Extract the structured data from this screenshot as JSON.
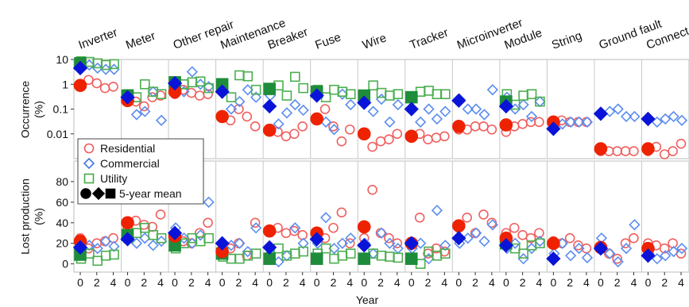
{
  "chart_data": {
    "type": "scatter",
    "panels": [
      {
        "id": "occurrence",
        "ylabel": "Occurrence\n(%)",
        "yscale": "log",
        "ylim": [
          0.001,
          10
        ],
        "ticks": [
          "10",
          "1",
          "0.1",
          "0.01"
        ],
        "tick_values": [
          10,
          1,
          0.1,
          0.01
        ]
      },
      {
        "id": "lost_production",
        "ylabel": "Lost production\n(%)",
        "yscale": "linear",
        "ylim": [
          -8,
          100
        ],
        "ticks": [
          "80",
          "60",
          "40",
          "20",
          "0"
        ],
        "tick_values": [
          80,
          60,
          40,
          20,
          0
        ]
      }
    ],
    "xlabel": "Year",
    "x_ticks": [
      "0",
      "2",
      "4"
    ],
    "categories": [
      "Inverter",
      "Meter",
      "Other repair",
      "Maintenance",
      "Breaker",
      "Fuse",
      "Wire",
      "Tracker",
      "Microinverter",
      "Module",
      "String",
      "Ground fault",
      "Connector"
    ],
    "legend": {
      "placement": "left, lower part of occurrence panel",
      "entries": [
        {
          "label": "Residential",
          "marker": "circle",
          "color": "#f05a5a"
        },
        {
          "label": "Commercial",
          "marker": "diamond",
          "color": "#4477dd"
        },
        {
          "label": "Utility",
          "marker": "square",
          "color": "#44aa44"
        },
        {
          "label": "5-year mean",
          "markers": [
            "circle",
            "diamond",
            "square"
          ],
          "color": "#000000",
          "filled": true
        }
      ]
    },
    "series_colors": {
      "residential": {
        "open": "#f06060",
        "mean": "#ee2200"
      },
      "commercial": {
        "open": "#5b8def",
        "mean": "#0a14d8"
      },
      "utility": {
        "open": "#4caf50",
        "mean": "#1e8c3a"
      }
    },
    "occurrence": [
      {
        "category": "Inverter",
        "residential": [
          1.0,
          1.5,
          1.1,
          0.7,
          0.8
        ],
        "residential_mean": 0.9,
        "commercial": [
          8,
          6,
          4.5,
          4,
          4
        ],
        "commercial_mean": 4.5,
        "utility": [
          8.5,
          8,
          7,
          6,
          6.5
        ],
        "utility_mean": 7
      },
      {
        "category": "Meter",
        "residential": [
          0.25,
          0.2,
          0.13,
          0.3,
          0.35
        ],
        "residential_mean": 0.22,
        "commercial": [
          0.35,
          0.06,
          0.08,
          0.5,
          0.035
        ],
        "commercial_mean": 0.3,
        "utility": [
          0.4,
          0.3,
          1.0,
          0.5,
          0.4
        ],
        "utility_mean": 0.35
      },
      {
        "category": "Other repair",
        "residential": [
          0.4,
          0.6,
          0.45,
          0.35,
          0.4
        ],
        "residential_mean": 0.5,
        "commercial": [
          1.2,
          0.5,
          3.2,
          1.0,
          0.8
        ],
        "commercial_mean": 1.1,
        "utility": [
          1.3,
          1.0,
          1.2,
          1.3,
          0.7
        ],
        "utility_mean": 1.2
      },
      {
        "category": "Maintenance",
        "residential": [
          0.045,
          0.035,
          0.1,
          0.05,
          0.02
        ],
        "residential_mean": 0.05,
        "commercial": [
          0.7,
          0.1,
          0.2,
          0.6,
          0.3
        ],
        "commercial_mean": 0.5,
        "utility": [
          1.0,
          0.3,
          2.3,
          2.1,
          0.6
        ],
        "utility_mean": 1.0
      },
      {
        "category": "Breaker",
        "residential": [
          0.015,
          0.012,
          0.008,
          0.01,
          0.02
        ],
        "residential_mean": 0.014,
        "commercial": [
          0.35,
          0.025,
          0.07,
          0.15,
          0.09
        ],
        "commercial_mean": 0.13,
        "utility": [
          0.7,
          0.9,
          0.35,
          2.0,
          0.7
        ],
        "utility_mean": 0.65
      },
      {
        "category": "Fuse",
        "residential": [
          0.04,
          0.1,
          0.02,
          0.005,
          0.015
        ],
        "residential_mean": 0.04,
        "commercial": [
          0.35,
          0.03,
          0.015,
          0.4,
          0.15
        ],
        "commercial_mean": 0.35,
        "utility": [
          0.6,
          0.3,
          0.6,
          0.5,
          0.4
        ],
        "utility_mean": 0.5
      },
      {
        "category": "Wire",
        "residential": [
          0.01,
          0.003,
          0.005,
          0.006,
          0.01
        ],
        "residential_mean": 0.01,
        "commercial": [
          0.25,
          0.08,
          0.25,
          0.03,
          0.15
        ],
        "commercial_mean": 0.18,
        "utility": [
          0.35,
          0.9,
          0.45,
          0.35,
          0.4
        ],
        "utility_mean": 0.35
      },
      {
        "category": "Tracker",
        "residential": [
          0.008,
          0.01,
          0.006,
          0.007,
          0.008
        ],
        "residential_mean": 0.008,
        "commercial": [
          0.25,
          0.03,
          0.1,
          0.04,
          0.08
        ],
        "commercial_mean": 0.1,
        "utility": [
          0.3,
          0.5,
          0.55,
          0.4,
          0.4
        ],
        "utility_mean": 0.3
      },
      {
        "category": "Microinverter",
        "residential": [
          0.015,
          0.015,
          0.02,
          0.02,
          0.015
        ],
        "residential_mean": 0.02,
        "commercial": [
          0.25,
          0.1,
          0.1,
          0.06,
          0.6
        ],
        "commercial_mean": 0.22,
        "utility": [],
        "utility_mean": null
      },
      {
        "category": "Module",
        "residential": [
          0.012,
          0.02,
          0.025,
          0.03,
          0.03
        ],
        "residential_mean": 0.023,
        "commercial": [
          0.3,
          0.1,
          0.15,
          0.05,
          0.2
        ],
        "commercial_mean": 0.13,
        "utility": [
          0.4,
          0.15,
          0.35,
          0.4,
          0.2
        ],
        "utility_mean": 0.2
      },
      {
        "category": "String",
        "residential": [
          0.03,
          0.035,
          0.03,
          0.03,
          0.03
        ],
        "residential_mean": 0.03,
        "commercial": [
          0.02,
          0.025,
          0.03,
          0.03,
          0.03
        ],
        "commercial_mean": 0.016,
        "utility": [],
        "utility_mean": null
      },
      {
        "category": "Ground fault",
        "residential": [
          0.002,
          0.002,
          0.002,
          0.002,
          0.002
        ],
        "residential_mean": 0.0025,
        "commercial": [
          0.07,
          0.08,
          0.1,
          0.05,
          0.05
        ],
        "commercial_mean": 0.065,
        "utility": [],
        "utility_mean": null
      },
      {
        "category": "Connector",
        "residential": [
          0.002,
          0.003,
          0.0015,
          0.002,
          0.004
        ],
        "residential_mean": 0.0025,
        "commercial": [
          0.04,
          0.03,
          0.04,
          0.05,
          0.035
        ],
        "commercial_mean": 0.04,
        "utility": [],
        "utility_mean": null
      }
    ],
    "lost_production": [
      {
        "category": "Inverter",
        "residential": [
          25,
          15,
          20,
          22,
          25
        ],
        "residential_mean": 22,
        "commercial": [
          12,
          18,
          15,
          22,
          17
        ],
        "commercial_mean": 16,
        "utility": [
          5,
          10,
          3,
          8,
          9
        ],
        "utility_mean": 9
      },
      {
        "category": "Meter",
        "residential": [
          35,
          42,
          38,
          36,
          48
        ],
        "residential_mean": 40,
        "commercial": [
          30,
          20,
          25,
          18,
          22
        ],
        "commercial_mean": 24,
        "utility": [
          25,
          30,
          35,
          28,
          25
        ],
        "utility_mean": 28
      },
      {
        "category": "Other repair",
        "residential": [
          25,
          22,
          20,
          30,
          40
        ],
        "residential_mean": 27,
        "commercial": [
          35,
          25,
          20,
          28,
          60
        ],
        "commercial_mean": 30,
        "utility": [
          15,
          20,
          25,
          22,
          25
        ],
        "utility_mean": 18
      },
      {
        "category": "Maintenance",
        "residential": [
          10,
          15,
          20,
          8,
          40
        ],
        "residential_mean": 12,
        "commercial": [
          10,
          18,
          20,
          12,
          35
        ],
        "commercial_mean": 20,
        "utility": [
          7,
          5,
          5,
          8,
          10
        ],
        "utility_mean": 10
      },
      {
        "category": "Breaker",
        "residential": [
          32,
          35,
          30,
          32,
          28
        ],
        "residential_mean": 32,
        "commercial": [
          10,
          2,
          8,
          35,
          20
        ],
        "commercial_mean": 16,
        "utility": [
          5,
          15,
          8,
          10,
          12
        ],
        "utility_mean": 5
      },
      {
        "category": "Fuse",
        "residential": [
          30,
          25,
          35,
          50,
          20
        ],
        "residential_mean": 30,
        "commercial": [
          20,
          45,
          15,
          20,
          25
        ],
        "commercial_mean": 24,
        "utility": [
          10,
          15,
          5,
          8,
          10
        ],
        "utility_mean": 5
      },
      {
        "category": "Wire",
        "residential": [
          25,
          72,
          30,
          25,
          20
        ],
        "residential_mean": 36,
        "commercial": [
          20,
          10,
          30,
          20,
          15
        ],
        "commercial_mean": 18,
        "utility": [
          5,
          10,
          8,
          7,
          6
        ],
        "utility_mean": 5
      },
      {
        "category": "Tracker",
        "residential": [
          20,
          45,
          10,
          15,
          12
        ],
        "residential_mean": 20,
        "commercial": [
          15,
          20,
          5,
          52,
          18
        ],
        "commercial_mean": 20,
        "utility": [
          5,
          0,
          12,
          8,
          10
        ],
        "utility_mean": 5
      },
      {
        "category": "Microinverter",
        "residential": [
          35,
          45,
          30,
          48,
          40
        ],
        "residential_mean": 37,
        "commercial": [
          20,
          25,
          30,
          22,
          38
        ],
        "commercial_mean": 25,
        "utility": [],
        "utility_mean": null
      },
      {
        "category": "Module",
        "residential": [
          30,
          35,
          28,
          25,
          30
        ],
        "residential_mean": 25,
        "commercial": [
          15,
          20,
          5,
          15,
          22
        ],
        "commercial_mean": 18,
        "utility": [
          20,
          15,
          10,
          18,
          20
        ],
        "utility_mean": 20
      },
      {
        "category": "String",
        "residential": [
          22,
          20,
          25,
          18,
          15
        ],
        "residential_mean": 20,
        "commercial": [
          10,
          20,
          8,
          15,
          6
        ],
        "commercial_mean": 5,
        "utility": [],
        "utility_mean": null
      },
      {
        "category": "Ground fault",
        "residential": [
          15,
          10,
          5,
          20,
          25
        ],
        "residential_mean": 16,
        "commercial": [
          25,
          10,
          2,
          15,
          38
        ],
        "commercial_mean": 15,
        "utility": [],
        "utility_mean": null
      },
      {
        "category": "Connector",
        "residential": [
          20,
          18,
          15,
          20,
          10
        ],
        "residential_mean": 15,
        "commercial": [
          10,
          5,
          8,
          12,
          15
        ],
        "commercial_mean": 8,
        "utility": [],
        "utility_mean": null
      }
    ]
  }
}
